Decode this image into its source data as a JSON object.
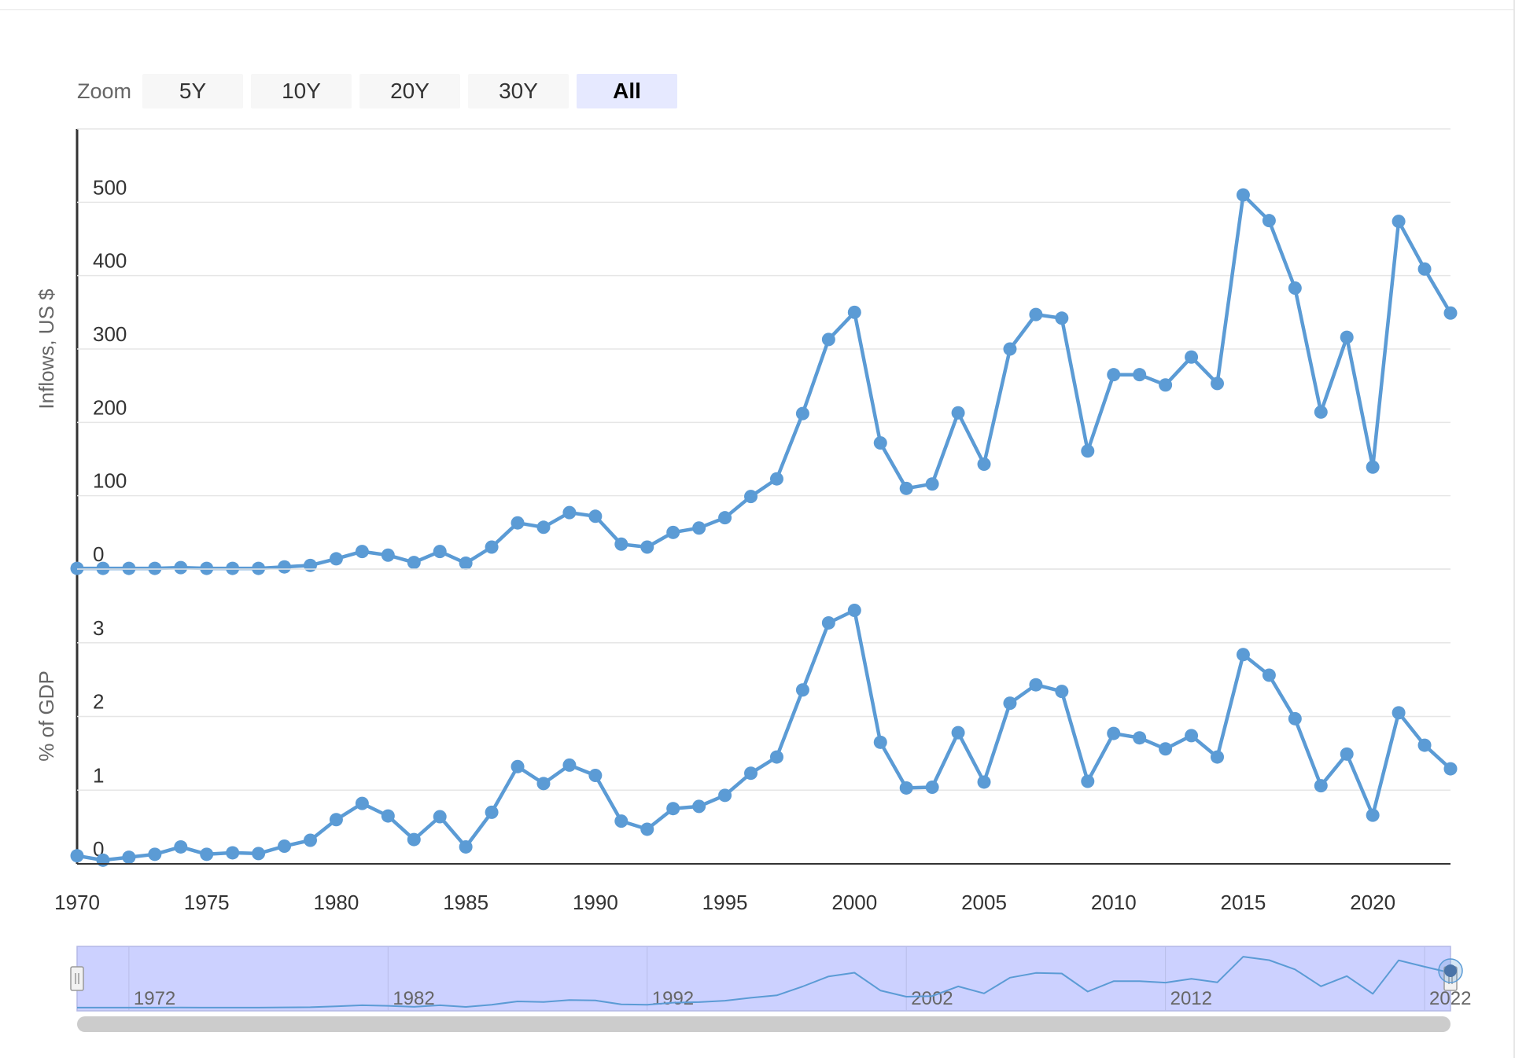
{
  "zoom": {
    "label": "Zoom",
    "buttons": [
      {
        "label": "5Y",
        "active": false
      },
      {
        "label": "10Y",
        "active": false
      },
      {
        "label": "20Y",
        "active": false
      },
      {
        "label": "30Y",
        "active": false
      },
      {
        "label": "All",
        "active": true
      }
    ]
  },
  "colors": {
    "series": "#5b9bd5",
    "grid": "#e6e6e6",
    "navigator_fill": "#ccd1ff",
    "navigator_line": "#5b9bd5",
    "scrollbar": "#cccccc"
  },
  "chart_data": [
    {
      "type": "line",
      "ylabel": "Inflows, US $",
      "yticks": [
        0,
        100,
        200,
        300,
        400,
        500
      ],
      "ylim": [
        0,
        600
      ],
      "grid": true,
      "x": [
        1970,
        1971,
        1972,
        1973,
        1974,
        1975,
        1976,
        1977,
        1978,
        1979,
        1980,
        1981,
        1982,
        1983,
        1984,
        1985,
        1986,
        1987,
        1988,
        1989,
        1990,
        1991,
        1992,
        1993,
        1994,
        1995,
        1996,
        1997,
        1998,
        1999,
        2000,
        2001,
        2002,
        2003,
        2004,
        2005,
        2006,
        2007,
        2008,
        2009,
        2010,
        2011,
        2012,
        2013,
        2014,
        2015,
        2016,
        2017,
        2018,
        2019,
        2020,
        2021,
        2022,
        2023
      ],
      "series": [
        {
          "values": [
            1,
            1,
            1,
            1,
            2,
            1,
            1,
            1,
            3,
            5,
            14,
            24,
            19,
            9,
            24,
            8,
            30,
            63,
            57,
            77,
            72,
            34,
            30,
            50,
            56,
            70,
            99,
            123,
            212,
            313,
            350,
            172,
            110,
            116,
            213,
            143,
            300,
            347,
            342,
            161,
            265,
            265,
            251,
            289,
            253,
            510,
            475,
            383,
            214,
            316,
            139,
            474,
            409,
            349
          ]
        }
      ]
    },
    {
      "type": "line",
      "ylabel": "% of GDP",
      "yticks": [
        0,
        1,
        2,
        3
      ],
      "ylim": [
        0,
        4
      ],
      "grid": true,
      "x": [
        1970,
        1971,
        1972,
        1973,
        1974,
        1975,
        1976,
        1977,
        1978,
        1979,
        1980,
        1981,
        1982,
        1983,
        1984,
        1985,
        1986,
        1987,
        1988,
        1989,
        1990,
        1991,
        1992,
        1993,
        1994,
        1995,
        1996,
        1997,
        1998,
        1999,
        2000,
        2001,
        2002,
        2003,
        2004,
        2005,
        2006,
        2007,
        2008,
        2009,
        2010,
        2011,
        2012,
        2013,
        2014,
        2015,
        2016,
        2017,
        2018,
        2019,
        2020,
        2021,
        2022,
        2023
      ],
      "xticks": [
        1970,
        1975,
        1980,
        1985,
        1990,
        1995,
        2000,
        2005,
        2010,
        2015,
        2020
      ],
      "series": [
        {
          "values": [
            0.11,
            0.05,
            0.09,
            0.13,
            0.23,
            0.13,
            0.15,
            0.14,
            0.24,
            0.32,
            0.6,
            0.82,
            0.65,
            0.33,
            0.64,
            0.23,
            0.7,
            1.32,
            1.09,
            1.34,
            1.2,
            0.58,
            0.47,
            0.75,
            0.78,
            0.93,
            1.23,
            1.45,
            2.36,
            3.27,
            3.44,
            1.65,
            1.03,
            1.04,
            1.78,
            1.11,
            2.18,
            2.43,
            2.34,
            1.12,
            1.77,
            1.71,
            1.56,
            1.74,
            1.45,
            2.84,
            2.56,
            1.97,
            1.06,
            1.49,
            0.66,
            2.05,
            1.61,
            1.29
          ]
        }
      ]
    }
  ],
  "navigator": {
    "labels": [
      "1972",
      "1982",
      "1992",
      "2002",
      "2012",
      "2022"
    ],
    "range": [
      1970,
      2023
    ]
  }
}
